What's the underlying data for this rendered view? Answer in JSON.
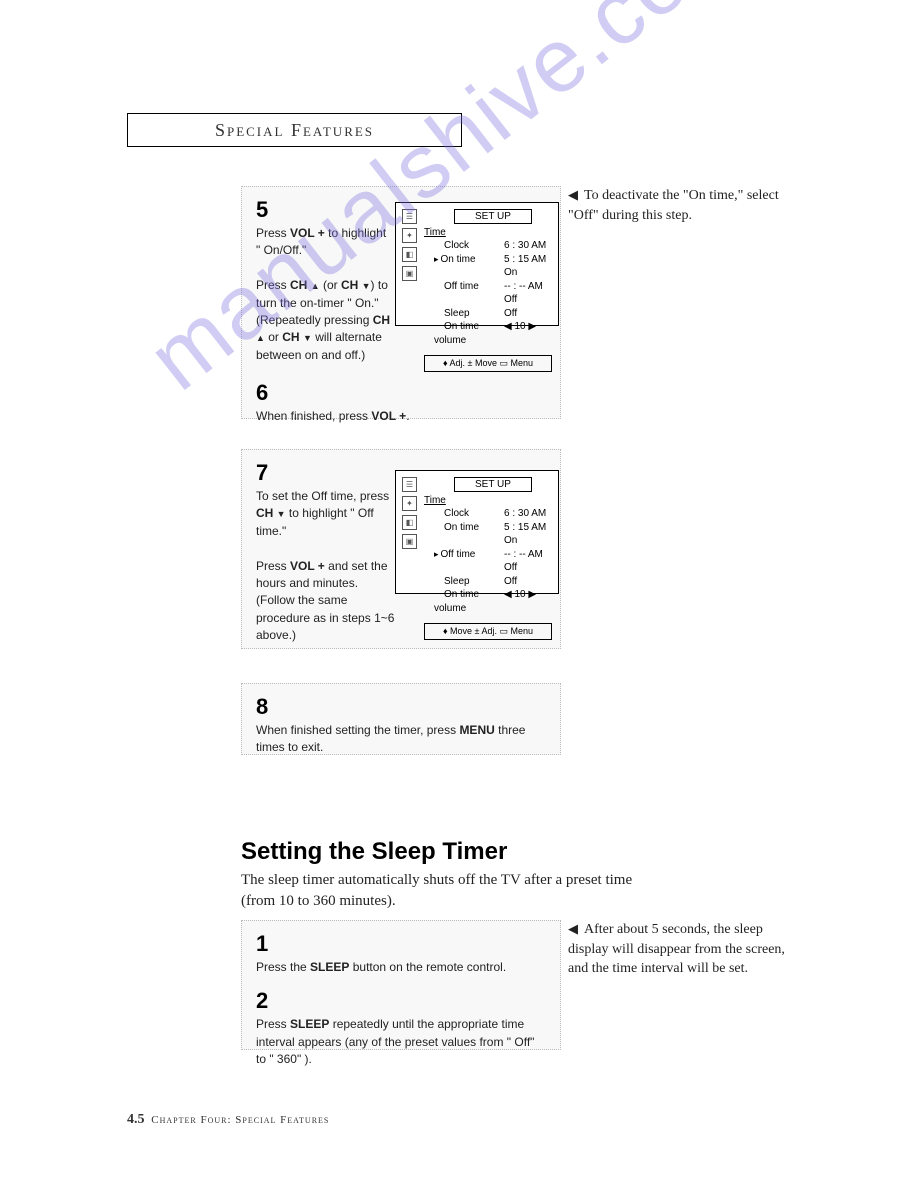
{
  "header": "Special Features",
  "watermark": "manualshive.com",
  "steps": {
    "s5": {
      "num": "5",
      "line1_a": "Press ",
      "line1_b": "VOL +",
      "line1_c": " to highlight \" On/Off.\"",
      "line2_a": "Press ",
      "line2_b": "CH ",
      "line2_c": " (or ",
      "line2_d": "CH ",
      "line2_e": ") to turn the on-timer \" On.\" (Repeatedly pressing ",
      "line2_f": "CH ",
      "line2_g": " or ",
      "line2_h": "CH ",
      "line2_i": " will alternate between on and off.)"
    },
    "s6": {
      "num": "6",
      "text_a": "When finished, press ",
      "text_b": "VOL +",
      "text_c": "."
    },
    "s7": {
      "num": "7",
      "line1_a": "To set the Off time, press ",
      "line1_b": "CH ",
      "line1_c": " to highlight \" Off time.\"",
      "line2_a": "Press ",
      "line2_b": "VOL +",
      "line2_c": " and set the hours and minutes. (Follow the same procedure as in steps 1~6 above.)"
    },
    "s8": {
      "num": "8",
      "text_a": "When finished setting the timer, press ",
      "text_b": "MENU",
      "text_c": " three times to exit."
    }
  },
  "osd1": {
    "title": "SET UP",
    "sub": "Time",
    "rows": [
      {
        "label": "Clock",
        "value": "6 : 30 AM",
        "ptr": false
      },
      {
        "label": "On time",
        "value": "5 : 15 AM On",
        "ptr": true
      },
      {
        "label": "Off time",
        "value": "-- : -- AM Off",
        "ptr": false
      },
      {
        "label": "Sleep",
        "value": "Off",
        "ptr": false
      },
      {
        "label": "On time volume",
        "value": "◀ 10 ▶",
        "ptr": false
      }
    ],
    "footer": "♦ Adj.    ± Move    ▭ Menu"
  },
  "osd2": {
    "title": "SET UP",
    "sub": "Time",
    "rows": [
      {
        "label": "Clock",
        "value": "6 : 30 AM",
        "ptr": false
      },
      {
        "label": "On time",
        "value": "5 : 15 AM On",
        "ptr": false
      },
      {
        "label": "Off time",
        "value": "-- : -- AM Off",
        "ptr": true
      },
      {
        "label": "Sleep",
        "value": "Off",
        "ptr": false
      },
      {
        "label": "On time volume",
        "value": "◀ 10 ▶",
        "ptr": false
      }
    ],
    "footer": "♦ Move    ± Adj.    ▭ Menu"
  },
  "note1": {
    "arrow": "◀",
    "text": "To deactivate the \"On time,\" select \"Off\" during this step."
  },
  "section": {
    "heading": "Setting the Sleep Timer",
    "intro": "The sleep timer automatically shuts off the TV after a preset time (from 10 to 360 minutes)."
  },
  "sleep": {
    "s1": {
      "num": "1",
      "a": "Press the ",
      "b": "SLEEP",
      "c": " button on the remote control."
    },
    "s2": {
      "num": "2",
      "a": "Press ",
      "b": "SLEEP",
      "c": " repeatedly until the appropriate time interval appears (any of the preset values from \" Off\" to \" 360\" )."
    }
  },
  "note2": {
    "arrow": "◀",
    "text": "After about 5 seconds, the sleep display will disappear from the screen, and the time interval will be set."
  },
  "footer": {
    "page": "4.5",
    "chapter": "Chapter Four: Special Features"
  }
}
